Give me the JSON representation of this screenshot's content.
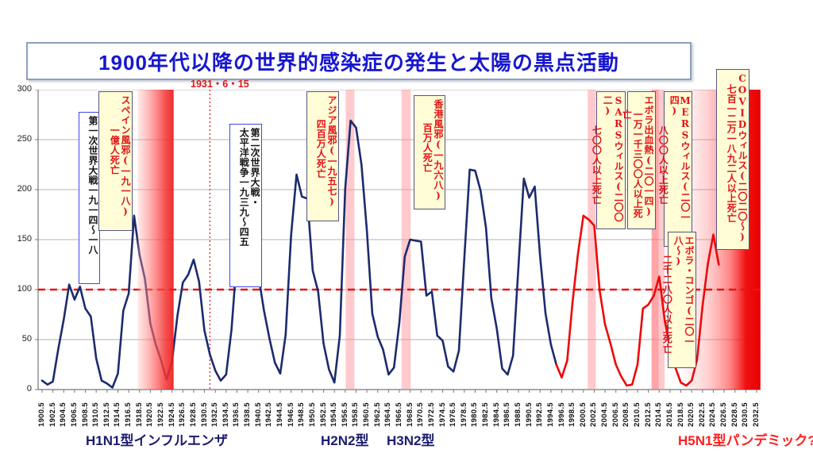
{
  "title": "1900年代以降の世界的感染症の発生と太陽の黒点活動",
  "date_marker": "1931・6・15",
  "bottom_labels": [
    {
      "id": "h1n1",
      "text": "H1N1型インフルエンザ",
      "color": "#1c1c70"
    },
    {
      "id": "h2n2",
      "text": "H2N2型",
      "color": "#1c1c70"
    },
    {
      "id": "h3n2",
      "text": "H3N2型",
      "color": "#1c1c70"
    },
    {
      "id": "h5n1",
      "text": "H5N1型パンデミック?",
      "color": "#ff1f1f"
    }
  ],
  "annotations": [
    {
      "id": "ww1",
      "line1": "第一次世界大戦一九一四〜一八",
      "line2": ""
    },
    {
      "id": "spanish-flu",
      "line1": "スペイン風邪(一九一八)",
      "line2": "一億人死亡"
    },
    {
      "id": "ww2",
      "line1": "第二次世界大戦・",
      "line2": "太平洋戦争一九三九〜四五"
    },
    {
      "id": "asian-flu",
      "line1": "アジア風邪(一九五七)",
      "line2": "四百万人死亡"
    },
    {
      "id": "hongkong-flu",
      "line1": "香港風邪(一九六八)",
      "line2": "百万人死亡"
    },
    {
      "id": "sars",
      "line1": "SARSウィルス(二〇〇二)",
      "line2": "七〇〇人以上死亡"
    },
    {
      "id": "ebola",
      "line1": "エボラ出血熱(二〇一四)",
      "line2": "一万一千三〇〇人以上死亡"
    },
    {
      "id": "mers",
      "line1": "MERSウィルス(二〇一四)",
      "line2": "八〇〇人以上死亡"
    },
    {
      "id": "ebola-congo",
      "line1": "エボラ・コンゴ(二〇一八〜)",
      "line2": "二千二八〇人以上死亡"
    },
    {
      "id": "covid",
      "line1": "COVIDウィルス(二〇二〇〜)",
      "line2": "七百一二万一八九二人以上死亡"
    }
  ],
  "chart_data": {
    "type": "line",
    "title": "1900年代以降の世界的感染症の発生と太陽の黒点活動",
    "xlabel": "",
    "ylabel": "",
    "ylim": [
      0,
      300
    ],
    "y_ticks": [
      0,
      50,
      100,
      150,
      200,
      250,
      300
    ],
    "x_range": [
      1900.5,
      2032.5
    ],
    "x_ticks": [
      "1900.5",
      "1902.5",
      "1904.5",
      "1906.5",
      "1908.5",
      "1910.5",
      "1912.5",
      "1914.5",
      "1916.5",
      "1918.5",
      "1920.5",
      "1922.5",
      "1924.5",
      "1926.5",
      "1928.5",
      "1930.5",
      "1932.5",
      "1934.5",
      "1936.5",
      "1938.5",
      "1940.5",
      "1942.5",
      "1944.5",
      "1946.5",
      "1948.5",
      "1950.5",
      "1952.5",
      "1954.5",
      "1956.5",
      "1958.5",
      "1960.5",
      "1962.5",
      "1964.5",
      "1966.5",
      "1968.5",
      "1970.5",
      "1972.5",
      "1974.5",
      "1976.5",
      "1978.5",
      "1980.5",
      "1982.5",
      "1984.5",
      "1986.5",
      "1988.5",
      "1990.5",
      "1992.5",
      "1994.5",
      "1996.5",
      "1998.5",
      "2000.5",
      "2002.5",
      "2004.5",
      "2006.5",
      "2008.5",
      "2010.5",
      "2012.5",
      "2014.5",
      "2016.5",
      "2018.5",
      "2020.5",
      "2022.5",
      "2024.5",
      "2026.5",
      "2028.5",
      "2030.5",
      "2032.5"
    ],
    "grid": true,
    "legend": false,
    "series": [
      {
        "name": "sunspot-activity",
        "x_start_year": 1900,
        "values": [
          9,
          5,
          8,
          41,
          70,
          105,
          90,
          103,
          81,
          73,
          31,
          9,
          6,
          2,
          16,
          79,
          96,
          174,
          135,
          111,
          66,
          45,
          29,
          10,
          28,
          74,
          107,
          115,
          130,
          108,
          59,
          35,
          19,
          9,
          15,
          60,
          133,
          191,
          183,
          148,
          113,
          79,
          51,
          27,
          16,
          55,
          154,
          215,
          193,
          191,
          119,
          98,
          46,
          20,
          7,
          54,
          201,
          269,
          262,
          225,
          159,
          76,
          53,
          40,
          15,
          22,
          67,
          133,
          150,
          149,
          148,
          94,
          98,
          54,
          49,
          23,
          18,
          39,
          131,
          220,
          219,
          199,
          162,
          91,
          61,
          21,
          15,
          34,
          123,
          211,
          192,
          203,
          133,
          76,
          45,
          25,
          12,
          29,
          88,
          136,
          174,
          170,
          164,
          99,
          65,
          46,
          25,
          13,
          4,
          5,
          25,
          81,
          85,
          94,
          113,
          70,
          40,
          22,
          7,
          4,
          9,
          30,
          83,
          126,
          155,
          125
        ],
        "color_historic": "#1c2b6e",
        "color_recent": "#ee0808",
        "red_from_year": 1995
      }
    ],
    "reference_line_y": 100,
    "reference_line_color": "#e81515",
    "vertical_marker_year": 1931.5,
    "vertical_marker_color": "#e82020",
    "bands": [
      {
        "label": "spanish-flu-period",
        "from": 1918.2,
        "to": 1924.8,
        "style": "spanish"
      },
      {
        "label": "asian-flu-1957",
        "from": 1956.6,
        "to": 1958.2,
        "style": "pink"
      },
      {
        "label": "hongkong-flu-1968",
        "from": 1966.9,
        "to": 1968.6,
        "style": "pink"
      },
      {
        "label": "sars-2002",
        "from": 2001.3,
        "to": 2002.8,
        "style": "pink"
      },
      {
        "label": "ebola-mers-2014a",
        "from": 2013.1,
        "to": 2014.4,
        "style": "pink-dark"
      },
      {
        "label": "ebola-mers-2014b",
        "from": 2014.4,
        "to": 2015.5,
        "style": "pink"
      },
      {
        "label": "covid-era",
        "from": 2019.0,
        "to": 2033.2,
        "style": "covid"
      }
    ]
  }
}
